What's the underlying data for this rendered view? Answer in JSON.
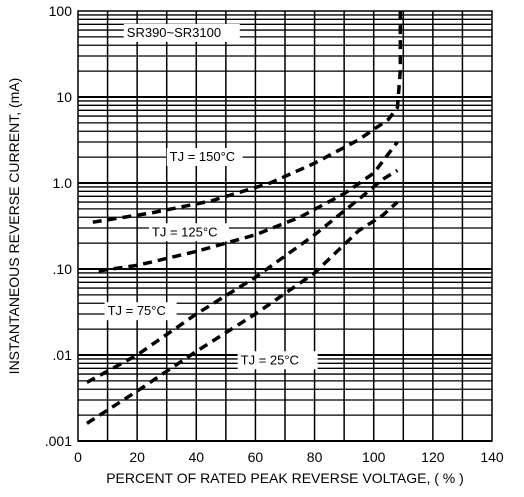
{
  "chart_data": {
    "type": "line",
    "title": "",
    "xlabel": "PERCENT OF RATED PEAK REVERSE VOLTAGE, ( % )",
    "ylabel": "INSTANTANEOUS REVERSE CURRENT, (mA)",
    "xlim": [
      0,
      140
    ],
    "ylim": [
      0.001,
      100
    ],
    "yscale": "log",
    "x_ticks": [
      "0",
      "20",
      "40",
      "60",
      "80",
      "100",
      "120",
      "140"
    ],
    "y_ticks": [
      ".001",
      ".01",
      ".10",
      "1.0",
      "10",
      "100"
    ],
    "grid": true,
    "annotations": [
      "SR390~SR3100"
    ],
    "series": [
      {
        "name": "TJ = 150°C",
        "x": [
          5,
          25,
          45,
          65,
          80,
          95,
          105,
          108,
          109,
          109
        ],
        "y": [
          0.35,
          0.45,
          0.62,
          1.0,
          1.7,
          3.2,
          5.5,
          7.5,
          20,
          100
        ]
      },
      {
        "name": "TJ = 125°C",
        "x": [
          7,
          20,
          40,
          60,
          75,
          90,
          100,
          108
        ],
        "y": [
          0.095,
          0.11,
          0.16,
          0.25,
          0.4,
          0.75,
          1.3,
          3.0
        ]
      },
      {
        "name": "TJ = 75°C",
        "x": [
          3,
          20,
          40,
          60,
          80,
          95,
          103,
          108
        ],
        "y": [
          0.0048,
          0.01,
          0.03,
          0.08,
          0.25,
          0.65,
          1.1,
          1.4
        ]
      },
      {
        "name": "TJ = 25°C",
        "x": [
          3,
          20,
          40,
          60,
          80,
          95,
          103,
          108
        ],
        "y": [
          0.0016,
          0.0038,
          0.011,
          0.03,
          0.09,
          0.28,
          0.42,
          0.6
        ]
      }
    ]
  }
}
